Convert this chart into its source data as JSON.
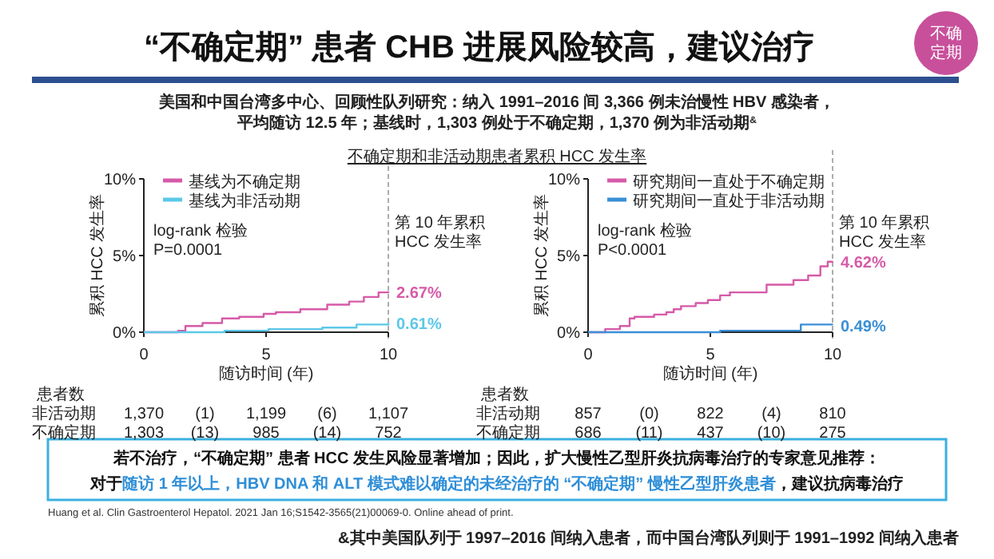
{
  "chart_data": [
    {
      "type": "other",
      "title": "“不确定期” 患者 CHB 进展风险较高，建议治疗",
      "subtitle": "美国和中国台湾多中心、回顾性队列研究：纳入 1991–2016 间 3,366 例未治慢性 HBV 感染者，",
      "annotations": [
        "平均随访 12.5 年；基线时，1,303 例处于不确定期，1,370 例为非活动期$^{&}$",
        "不确",
        "定期",
        "不确定期和非活动期患者累积 HCC 发生率",
        "若不治疗，“不确定期” 患者 HCC 发生风险显著增加；因此，扩大慢性乙型肝炎抗病毒治疗的专家意见推荐：",
        "对于",
        "随访 1 年以上，HBV DNA 和 ALT 模式难以确定的未经治疗的 “不确定期” 慢性乙型肝炎患者",
        "，建议抗病毒治疗",
        "Huang et al. Clin Gastroenterol Hepatol. 2021 Jan 16;S1542-3565(21)00069-0. Online ahead of print.",
        "&其中美国队列于 1997–2016 间纳入患者，而中国台湾队列则于 1991–1992 间纳入患者"
      ]
    },
    {
      "type": "step",
      "xlabel": "随访时间 (年)",
      "ylabel": "累积 HCC 发生率",
      "xlim": [
        0,
        10
      ],
      "ylim": [
        0,
        10
      ],
      "xticks": [
        0,
        5,
        10
      ],
      "yticks": [
        {
          "value": 0,
          "label": "0%"
        },
        {
          "value": 5,
          "label": "5%"
        },
        {
          "value": 10,
          "label": "10%"
        }
      ],
      "legend": "top left",
      "series": [
        {
          "name": "基线为不确定期",
          "color": "#d65aa8",
          "x": [
            0,
            1.4,
            1.7,
            2.4,
            3.2,
            3.9,
            4.9,
            5.4,
            6.4,
            7.5,
            8.4,
            9.0,
            9.6,
            10
          ],
          "values": [
            0,
            0.1,
            0.4,
            0.6,
            0.9,
            1.0,
            1.2,
            1.3,
            1.5,
            1.8,
            2.0,
            2.3,
            2.6,
            2.67
          ],
          "value_labels": [
            null,
            null,
            null,
            null,
            null,
            null,
            null,
            null,
            null,
            null,
            null,
            null,
            null,
            "2.67%"
          ]
        },
        {
          "name": "基线为非活动期",
          "color": "#5bc8e8",
          "x": [
            0,
            3.3,
            5.1,
            7.3,
            8.7,
            10
          ],
          "values": [
            0,
            0.1,
            0.2,
            0.3,
            0.5,
            0.61
          ],
          "value_labels": [
            null,
            null,
            null,
            null,
            null,
            "0.61%"
          ]
        }
      ],
      "ref_lines": [
        {
          "axis": "x",
          "value": 10,
          "label": "第 10 年累积\nHCC 发生率",
          "line_style": "dashed",
          "color": "#999999"
        }
      ],
      "annotations": [
        "log-rank 检验\nP=0.0001",
        "患者数",
        "非活动期",
        "1,370",
        "(1)",
        "1,199",
        "(6)",
        "1,107",
        "不确定期",
        "1,303",
        "(13)",
        "985",
        "(14)",
        "752"
      ]
    },
    {
      "type": "step",
      "xlabel": "随访时间 (年)",
      "ylabel": "累积 HCC 发生率",
      "xlim": [
        0,
        10
      ],
      "ylim": [
        0,
        10
      ],
      "xticks": [
        0,
        5,
        10
      ],
      "yticks": [
        {
          "value": 0,
          "label": "0%"
        },
        {
          "value": 5,
          "label": "5%"
        },
        {
          "value": 10,
          "label": "10%"
        }
      ],
      "legend": "top left",
      "series": [
        {
          "name": "研究期间一直处于不确定期",
          "color": "#d65aa8",
          "x": [
            0,
            0.7,
            1.3,
            1.7,
            1.9,
            2.7,
            3.2,
            3.5,
            3.8,
            4.4,
            4.9,
            5.4,
            5.8,
            7.3,
            8.4,
            9.0,
            9.5,
            9.8,
            10
          ],
          "values": [
            0,
            0.2,
            0.4,
            0.9,
            1.0,
            1.15,
            1.3,
            1.5,
            1.7,
            1.9,
            2.1,
            2.4,
            2.6,
            3.1,
            3.4,
            3.7,
            4.3,
            4.6,
            4.62
          ],
          "value_labels": [
            null,
            null,
            null,
            null,
            null,
            null,
            null,
            null,
            null,
            null,
            null,
            null,
            null,
            null,
            null,
            null,
            null,
            null,
            "4.62%"
          ]
        },
        {
          "name": "研究期间一直处于非活动期",
          "color": "#3a8fd6",
          "x": [
            0,
            5.4,
            8.7,
            10
          ],
          "values": [
            0,
            0.1,
            0.5,
            0.49
          ],
          "value_labels": [
            null,
            null,
            null,
            "0.49%"
          ]
        }
      ],
      "ref_lines": [
        {
          "axis": "x",
          "value": 10,
          "label": "第 10 年累积\nHCC 发生率",
          "line_style": "dashed",
          "color": "#999999"
        }
      ],
      "annotations": [
        "log-rank 检验\nP<0.0001",
        "患者数",
        "非活动期",
        "857",
        "(0)",
        "822",
        "(4)",
        "810",
        "不确定期",
        "686",
        "(11)",
        "437",
        "(10)",
        "275"
      ]
    }
  ]
}
